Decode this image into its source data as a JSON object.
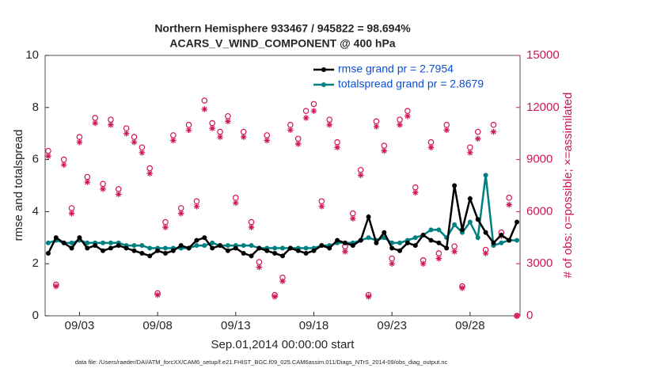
{
  "chart_data": {
    "type": "line",
    "title": "Northern Hemisphere 933467 / 945822 = 98.694%",
    "subtitle": "ACARS_V_WIND_COMPONENT @ 400 hPa",
    "xlabel": "Sep.01,2014 00:00:00 start",
    "ylabel": "rmse and totalspread",
    "y2label": "# of obs: o=possible; ×=assimilated",
    "footnote": "data file: /Users/raeder/DAI/ATM_forcXX/CAM6_setup/f.e21.FHIST_BGC.f09_025.CAM6assim.011/Diags_NTrS_2014-09/obs_diag_output.nc",
    "x": [
      0,
      0.5,
      1,
      1.5,
      2,
      2.5,
      3,
      3.5,
      4,
      4.5,
      5,
      5.5,
      6,
      6.5,
      7,
      7.5,
      8,
      8.5,
      9,
      9.5,
      10,
      10.5,
      11,
      11.5,
      12,
      12.5,
      13,
      13.5,
      14,
      14.5,
      15,
      15.5,
      16,
      16.5,
      17,
      17.5,
      18,
      18.5,
      19,
      19.5,
      20,
      20.5,
      21,
      21.5,
      22,
      22.5,
      23,
      23.5,
      24,
      24.5,
      25,
      25.5,
      26,
      26.5,
      27,
      27.5,
      28,
      28.5,
      29,
      29.5,
      30
    ],
    "xlim": [
      -0.2,
      30.2
    ],
    "xticks": [
      {
        "value": 2,
        "label": "09/03"
      },
      {
        "value": 7,
        "label": "09/08"
      },
      {
        "value": 12,
        "label": "09/13"
      },
      {
        "value": 17,
        "label": "09/18"
      },
      {
        "value": 22,
        "label": "09/23"
      },
      {
        "value": 27,
        "label": "09/28"
      }
    ],
    "ylim": [
      0,
      10
    ],
    "yticks": [
      0,
      2,
      4,
      6,
      8,
      10
    ],
    "y2lim": [
      0,
      15000
    ],
    "y2ticks": [
      0,
      3000,
      6000,
      9000,
      12000,
      15000
    ],
    "grid": false,
    "series": [
      {
        "name": "rmse grand pr = 2.7954",
        "color": "#000000",
        "marker": "filled-circle",
        "values": [
          2.4,
          3.0,
          2.8,
          2.6,
          3.0,
          2.6,
          2.7,
          2.5,
          2.6,
          2.7,
          2.6,
          2.5,
          2.4,
          2.3,
          2.5,
          2.4,
          2.5,
          2.7,
          2.6,
          2.9,
          3.0,
          2.6,
          2.7,
          2.5,
          2.6,
          2.4,
          2.3,
          2.6,
          2.5,
          2.4,
          2.3,
          2.6,
          2.5,
          2.4,
          2.5,
          2.7,
          2.6,
          2.9,
          2.8,
          2.7,
          2.9,
          3.8,
          2.8,
          3.2,
          2.6,
          2.5,
          2.8,
          2.7,
          3.1,
          2.9,
          2.8,
          2.6,
          5.0,
          3.3,
          4.5,
          3.7,
          3.2,
          2.8,
          3.1,
          2.9,
          3.6
        ]
      },
      {
        "name": "totalspread grand pr = 2.8679",
        "color": "#008080",
        "marker": "filled-circle",
        "values": [
          2.8,
          2.9,
          2.8,
          2.8,
          2.9,
          2.8,
          2.8,
          2.8,
          2.8,
          2.8,
          2.7,
          2.7,
          2.7,
          2.6,
          2.6,
          2.6,
          2.6,
          2.6,
          2.6,
          2.7,
          2.7,
          2.8,
          2.7,
          2.7,
          2.7,
          2.7,
          2.7,
          2.6,
          2.6,
          2.6,
          2.6,
          2.6,
          2.6,
          2.6,
          2.6,
          2.7,
          2.7,
          2.8,
          2.8,
          2.8,
          2.9,
          3.0,
          2.9,
          3.0,
          2.8,
          2.8,
          2.9,
          3.0,
          3.1,
          3.3,
          3.3,
          3.0,
          3.5,
          3.2,
          3.6,
          3.0,
          5.4,
          2.7,
          2.8,
          2.9,
          2.9
        ]
      },
      {
        "color": "#d0145a",
        "marker": "open-circle",
        "axis": "y2",
        "values": [
          9500,
          1800,
          9000,
          6200,
          10300,
          8000,
          11400,
          7600,
          11300,
          7300,
          10800,
          10300,
          9700,
          8500,
          1300,
          5400,
          10400,
          6200,
          11000,
          6600,
          12400,
          11100,
          10600,
          11500,
          6800,
          10600,
          5400,
          3100,
          10400,
          1200,
          2200,
          11000,
          10200,
          11800,
          12200,
          6600,
          11300,
          10000,
          4000,
          5900,
          8400,
          1200,
          11200,
          9800,
          3300,
          11300,
          11800,
          7400,
          3200,
          10000,
          3600,
          11000,
          4000,
          1700,
          9700,
          10600,
          3800,
          11000,
          4800,
          6800,
          0
        ]
      },
      {
        "color": "#d0145a",
        "marker": "asterisk",
        "axis": "y2",
        "values": [
          9200,
          1700,
          8700,
          5900,
          10000,
          7700,
          11100,
          7300,
          11000,
          7000,
          10500,
          10000,
          9400,
          8200,
          1200,
          5100,
          10100,
          5900,
          10700,
          6300,
          11900,
          10800,
          10300,
          11200,
          6500,
          10300,
          5100,
          2800,
          10100,
          1100,
          2000,
          10700,
          9900,
          11400,
          11800,
          6300,
          11000,
          9700,
          3700,
          5600,
          8100,
          1100,
          10900,
          9500,
          3000,
          11000,
          11500,
          7100,
          3000,
          9700,
          3300,
          10700,
          3700,
          1600,
          9400,
          10200,
          3600,
          10600,
          4600,
          6400,
          0
        ]
      }
    ]
  }
}
